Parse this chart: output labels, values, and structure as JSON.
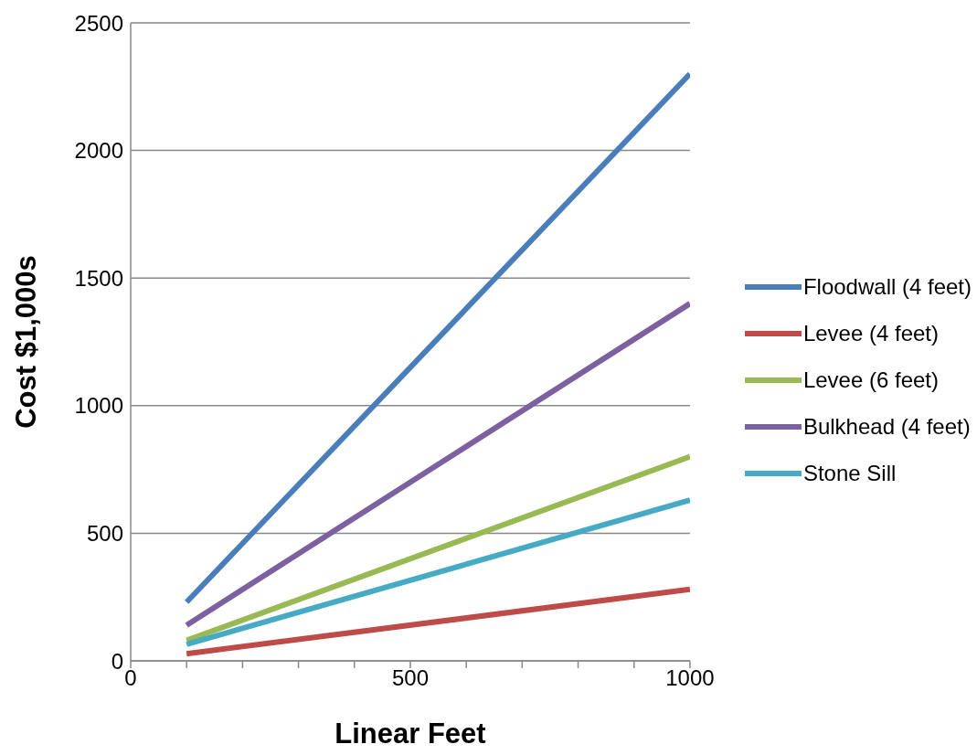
{
  "chart_data": {
    "type": "line",
    "xlabel": "Linear Feet",
    "ylabel": "Cost $1,000s",
    "x": [
      100,
      1000
    ],
    "series": [
      {
        "name": "Floodwall (4 feet)",
        "color": "#4a7ebb",
        "values": [
          230,
          2300
        ]
      },
      {
        "name": "Levee (4 feet)",
        "color": "#be4b48",
        "values": [
          28,
          280
        ]
      },
      {
        "name": "Levee (6 feet)",
        "color": "#98b954",
        "values": [
          80,
          800
        ]
      },
      {
        "name": "Bulkhead (4 feet)",
        "color": "#7d60a0",
        "values": [
          140,
          1400
        ]
      },
      {
        "name": "Stone Sill",
        "color": "#46aac5",
        "values": [
          65,
          630
        ]
      }
    ],
    "xlim": [
      0,
      1000
    ],
    "xticks": [
      0,
      {
        "value": 100,
        "label": null
      },
      {
        "value": 200,
        "label": null
      },
      {
        "value": 300,
        "label": null
      },
      {
        "value": 400,
        "label": null
      },
      500,
      {
        "value": 600,
        "label": null
      },
      {
        "value": 700,
        "label": null
      },
      {
        "value": 800,
        "label": null
      },
      {
        "value": 900,
        "label": null
      },
      1000
    ],
    "ylim": [
      0,
      2500
    ],
    "yticks": [
      0,
      500,
      1000,
      1500,
      2000,
      2500
    ],
    "grid": "y",
    "legend": "right",
    "marker": "none",
    "line_style": "solid"
  }
}
